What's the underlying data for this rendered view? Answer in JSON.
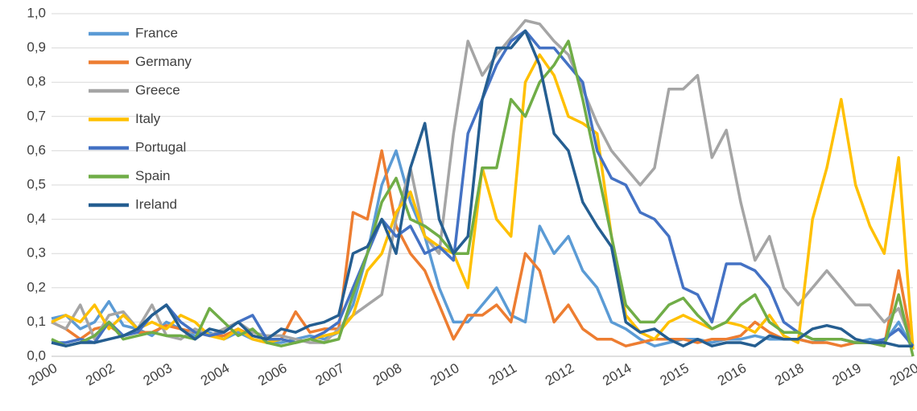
{
  "chart_data": {
    "type": "line",
    "categories": [
      "2000",
      null,
      null,
      null,
      "2002",
      null,
      null,
      null,
      "2003",
      null,
      null,
      null,
      "2004",
      null,
      null,
      null,
      "2006",
      null,
      null,
      null,
      "2007",
      null,
      null,
      null,
      "2008",
      null,
      null,
      null,
      "2010",
      null,
      null,
      null,
      "2011",
      null,
      null,
      null,
      "2012",
      null,
      null,
      null,
      "2014",
      null,
      null,
      null,
      "2015",
      null,
      null,
      null,
      "2016",
      null,
      null,
      null,
      "2018",
      null,
      null,
      null,
      "2019",
      null,
      null,
      null,
      "2020"
    ],
    "ylim": [
      0,
      1
    ],
    "yticks": [
      {
        "value": 0,
        "label": "0,0"
      },
      {
        "value": 0.1,
        "label": "0,1"
      },
      {
        "value": 0.2,
        "label": "0,2"
      },
      {
        "value": 0.3,
        "label": "0,3"
      },
      {
        "value": 0.4,
        "label": "0,4"
      },
      {
        "value": 0.5,
        "label": "0,5"
      },
      {
        "value": 0.6,
        "label": "0,6"
      },
      {
        "value": 0.7,
        "label": "0,7"
      },
      {
        "value": 0.8,
        "label": "0,8"
      },
      {
        "value": 0.9,
        "label": "0,9"
      },
      {
        "value": 1,
        "label": "1,0"
      }
    ],
    "grid": true,
    "legend": "top-left",
    "series": [
      {
        "name": "France",
        "color": "#5b9bd5",
        "values": [
          0.11,
          0.12,
          0.08,
          0.1,
          0.16,
          0.09,
          0.08,
          0.06,
          0.1,
          0.08,
          0.06,
          0.07,
          0.05,
          0.07,
          0.05,
          0.04,
          0.04,
          0.05,
          0.06,
          0.05,
          0.07,
          0.15,
          0.3,
          0.5,
          0.6,
          0.45,
          0.35,
          0.2,
          0.1,
          0.1,
          0.15,
          0.2,
          0.12,
          0.1,
          0.38,
          0.3,
          0.35,
          0.25,
          0.2,
          0.1,
          0.08,
          0.05,
          0.03,
          0.04,
          0.05,
          0.05,
          0.04,
          0.05,
          0.05,
          0.06,
          0.05,
          0.05,
          0.05,
          0.04,
          0.05,
          0.05,
          0.04,
          0.05,
          0.04,
          0.1,
          0.02
        ]
      },
      {
        "name": "Germany",
        "color": "#ed7d31",
        "values": [
          0.1,
          0.08,
          0.05,
          0.08,
          0.09,
          0.06,
          0.07,
          0.07,
          0.09,
          0.08,
          0.07,
          0.06,
          0.06,
          0.08,
          0.06,
          0.05,
          0.05,
          0.13,
          0.07,
          0.08,
          0.08,
          0.42,
          0.4,
          0.6,
          0.38,
          0.3,
          0.25,
          0.15,
          0.05,
          0.12,
          0.12,
          0.15,
          0.1,
          0.3,
          0.25,
          0.1,
          0.15,
          0.08,
          0.05,
          0.05,
          0.03,
          0.04,
          0.05,
          0.05,
          0.05,
          0.04,
          0.05,
          0.05,
          0.06,
          0.1,
          0.07,
          0.05,
          0.05,
          0.04,
          0.04,
          0.03,
          0.04,
          0.04,
          0.03,
          0.25,
          0.02
        ]
      },
      {
        "name": "Greece",
        "color": "#a5a5a5",
        "values": [
          0.1,
          0.08,
          0.15,
          0.05,
          0.12,
          0.13,
          0.08,
          0.15,
          0.06,
          0.05,
          0.08,
          0.06,
          0.08,
          0.1,
          0.07,
          0.06,
          0.06,
          0.05,
          0.04,
          0.04,
          0.08,
          0.12,
          0.15,
          0.18,
          0.4,
          0.55,
          0.35,
          0.3,
          0.65,
          0.92,
          0.82,
          0.88,
          0.93,
          0.98,
          0.97,
          0.92,
          0.88,
          0.78,
          0.68,
          0.6,
          0.55,
          0.5,
          0.55,
          0.78,
          0.78,
          0.82,
          0.58,
          0.66,
          0.45,
          0.28,
          0.35,
          0.2,
          0.15,
          0.2,
          0.25,
          0.2,
          0.15,
          0.15,
          0.1,
          0.14,
          0.03
        ]
      },
      {
        "name": "Italy",
        "color": "#ffc000",
        "values": [
          0.1,
          0.12,
          0.1,
          0.15,
          0.08,
          0.12,
          0.08,
          0.1,
          0.08,
          0.12,
          0.1,
          0.06,
          0.05,
          0.08,
          0.05,
          0.04,
          0.05,
          0.04,
          0.05,
          0.06,
          0.07,
          0.12,
          0.25,
          0.3,
          0.42,
          0.48,
          0.35,
          0.32,
          0.3,
          0.2,
          0.55,
          0.4,
          0.35,
          0.8,
          0.88,
          0.82,
          0.7,
          0.68,
          0.65,
          0.35,
          0.12,
          0.07,
          0.05,
          0.1,
          0.12,
          0.1,
          0.08,
          0.1,
          0.09,
          0.07,
          0.12,
          0.06,
          0.04,
          0.4,
          0.55,
          0.75,
          0.5,
          0.38,
          0.3,
          0.58,
          0.02
        ]
      },
      {
        "name": "Portugal",
        "color": "#4472c4",
        "values": [
          0.04,
          0.04,
          0.05,
          0.04,
          0.1,
          0.06,
          0.07,
          0.12,
          0.15,
          0.1,
          0.07,
          0.06,
          0.07,
          0.1,
          0.12,
          0.05,
          0.05,
          0.04,
          0.05,
          0.07,
          0.1,
          0.2,
          0.3,
          0.4,
          0.35,
          0.38,
          0.3,
          0.32,
          0.28,
          0.65,
          0.75,
          0.85,
          0.92,
          0.95,
          0.9,
          0.9,
          0.85,
          0.8,
          0.6,
          0.52,
          0.5,
          0.42,
          0.4,
          0.35,
          0.2,
          0.18,
          0.1,
          0.27,
          0.27,
          0.25,
          0.2,
          0.1,
          0.07,
          0.05,
          0.05,
          0.05,
          0.04,
          0.04,
          0.05,
          0.08,
          0.03
        ]
      },
      {
        "name": "Spain",
        "color": "#70ad47",
        "values": [
          0.05,
          0.03,
          0.04,
          0.06,
          0.1,
          0.05,
          0.06,
          0.07,
          0.06,
          0.06,
          0.05,
          0.14,
          0.1,
          0.06,
          0.08,
          0.04,
          0.03,
          0.04,
          0.05,
          0.04,
          0.05,
          0.18,
          0.3,
          0.45,
          0.52,
          0.4,
          0.38,
          0.35,
          0.3,
          0.3,
          0.55,
          0.55,
          0.75,
          0.7,
          0.8,
          0.85,
          0.92,
          0.75,
          0.55,
          0.35,
          0.15,
          0.1,
          0.1,
          0.15,
          0.17,
          0.12,
          0.08,
          0.1,
          0.15,
          0.18,
          0.1,
          0.07,
          0.07,
          0.05,
          0.05,
          0.05,
          0.04,
          0.04,
          0.03,
          0.18,
          0.0
        ]
      },
      {
        "name": "Ireland",
        "color": "#255e91",
        "values": [
          0.04,
          0.03,
          0.04,
          0.04,
          0.05,
          0.06,
          0.08,
          0.12,
          0.15,
          0.08,
          0.05,
          0.08,
          0.07,
          0.1,
          0.06,
          0.05,
          0.08,
          0.07,
          0.09,
          0.1,
          0.12,
          0.3,
          0.32,
          0.4,
          0.3,
          0.55,
          0.68,
          0.4,
          0.3,
          0.35,
          0.75,
          0.9,
          0.9,
          0.95,
          0.85,
          0.65,
          0.6,
          0.45,
          0.38,
          0.32,
          0.1,
          0.07,
          0.08,
          0.05,
          0.03,
          0.05,
          0.03,
          0.04,
          0.04,
          0.03,
          0.06,
          0.05,
          0.05,
          0.08,
          0.09,
          0.08,
          0.05,
          0.04,
          0.04,
          0.03,
          0.03
        ]
      }
    ]
  }
}
